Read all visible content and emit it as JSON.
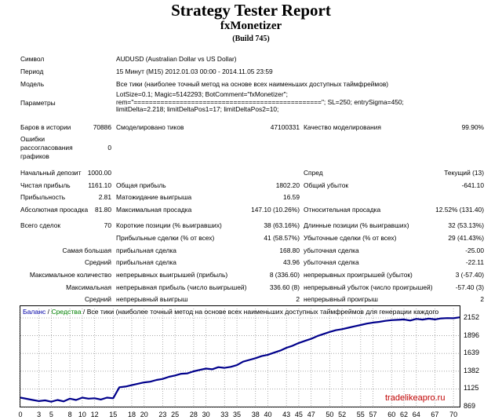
{
  "header": {
    "title": "Strategy Tester Report",
    "subtitle": "fxMonetizer",
    "build": "(Build 745)"
  },
  "info": {
    "symbol_label": "Символ",
    "symbol_value": "AUDUSD (Australian Dollar vs US Dollar)",
    "period_label": "Период",
    "period_value": "15 Минут (M15) 2012.01.03 00:00 - 2014.11.05 23:59",
    "model_label": "Модель",
    "model_value": "Все тики (наиболее точный метод на основе всех наименьших доступных таймфреймов)",
    "params_label": "Параметры",
    "params_line1": "LotSize=0.1; Magic=5142293; BotComment=\"fxMonetizer\";",
    "params_line2": "rem=\"=================================================\"; SL=250; entrySigma=450;",
    "params_line3": "limitDelta=2.218; limitDeltaPos1=17; limitDeltaPos2=10;"
  },
  "stats": {
    "bars_label": "Баров в истории",
    "bars_value": "70886",
    "ticks_label": "Смоделировано тиков",
    "ticks_value": "47100331",
    "quality_label": "Качество моделирования",
    "quality_value": "99.90%",
    "errors_label1": "Ошибки",
    "errors_label2": "рассогласования",
    "errors_label3": "графиков",
    "errors_value": "0",
    "deposit_label": "Начальный депозит",
    "deposit_value": "1000.00",
    "spread_label": "Спред",
    "spread_value": "Текущий (13)",
    "net_label": "Чистая прибыль",
    "net_value": "1161.10",
    "gross_profit_label": "Общая прибыль",
    "gross_profit_value": "1802.20",
    "gross_loss_label": "Общий убыток",
    "gross_loss_value": "-641.10",
    "pf_label": "Прибыльность",
    "pf_value": "2.81",
    "exp_label": "Матожидание выигрыша",
    "exp_value": "16.59",
    "abs_dd_label": "Абсолютная просадка",
    "abs_dd_value": "81.80",
    "max_dd_label": "Максимальная просадка",
    "max_dd_value": "147.10 (10.26%)",
    "rel_dd_label": "Относительная просадка",
    "rel_dd_value": "12.52% (131.40)",
    "trades_label": "Всего сделок",
    "trades_value": "70",
    "short_label": "Короткие позиции (% выигравших)",
    "short_value": "38 (63.16%)",
    "long_label": "Длинные позиции (% выигравших)",
    "long_value": "32 (53.13%)",
    "win_label": "Прибыльные сделки (% от всех)",
    "win_value": "41 (58.57%)",
    "loss_label": "Убыточные сделки (% от всех)",
    "loss_value": "29 (41.43%)",
    "largest_label_a": "Самая большая",
    "largest_label_b": "прибыльная сделка",
    "largest_win_value": "168.80",
    "largest_loss_label": "убыточная сделка",
    "largest_loss_value": "-25.00",
    "avg_label_a": "Средний",
    "avg_label_b": "прибыльная сделка",
    "avg_win_value": "43.96",
    "avg_loss_label": "убыточная сделка",
    "avg_loss_value": "-22.11",
    "maxcons_label_a": "Максимальное количество",
    "maxcons_label_b": "непрерывных выигрышей (прибыль)",
    "maxcons_win_value": "8 (336.60)",
    "maxcons_loss_label": "непрерывных проигрышей (убыток)",
    "maxcons_loss_value": "3 (-57.40)",
    "maxcons2_label_a": "Максимальная",
    "maxcons2_label_b": "непрерывная прибыль (число выигрышей)",
    "maxcons2_win_value": "336.60 (8)",
    "maxcons2_loss_label": "непрерывный убыток (число проигрышей)",
    "maxcons2_loss_value": "-57.40 (3)",
    "avgcons_label_a": "Средний",
    "avgcons_label_b": "непрерывный выигрыш",
    "avgcons_win_value": "2",
    "avgcons_loss_label": "непрерывный проигрыш",
    "avgcons_loss_value": "2"
  },
  "chart_legend": {
    "balance": "Баланс",
    "sep1": " / ",
    "funds": "Средства",
    "sep2": " / ",
    "rest": "Все тики (наиболее точный метод на основе всех наименьших доступных таймфреймов для генерации каждого"
  },
  "watermark": "tradelikeapro.ru",
  "chart_data": {
    "type": "line",
    "ylim": [
      869,
      2152
    ],
    "xlim": [
      0,
      71
    ],
    "yticks": [
      869,
      1125,
      1382,
      1639,
      1896,
      2152
    ],
    "xticks": [
      0,
      3,
      5,
      8,
      10,
      12,
      15,
      18,
      20,
      23,
      25,
      28,
      30,
      33,
      35,
      38,
      40,
      43,
      45,
      47,
      50,
      52,
      55,
      57,
      60,
      62,
      64,
      67,
      70
    ],
    "line_color": "#00008b",
    "series": [
      {
        "values": [
          1000,
          982,
          965,
          950,
          960,
          940,
          965,
          945,
          985,
          965,
          1000,
          985,
          990,
          972,
          1000,
          990,
          1150,
          1160,
          1180,
          1200,
          1220,
          1230,
          1255,
          1270,
          1300,
          1320,
          1345,
          1350,
          1380,
          1400,
          1420,
          1410,
          1440,
          1430,
          1445,
          1470,
          1520,
          1545,
          1570,
          1600,
          1620,
          1650,
          1680,
          1720,
          1750,
          1790,
          1820,
          1850,
          1890,
          1920,
          1950,
          1975,
          1990,
          2010,
          2030,
          2050,
          2070,
          2085,
          2095,
          2110,
          2120,
          2125,
          2130,
          2115,
          2138,
          2128,
          2142,
          2130,
          2145,
          2150,
          2148,
          2161
        ]
      }
    ]
  }
}
